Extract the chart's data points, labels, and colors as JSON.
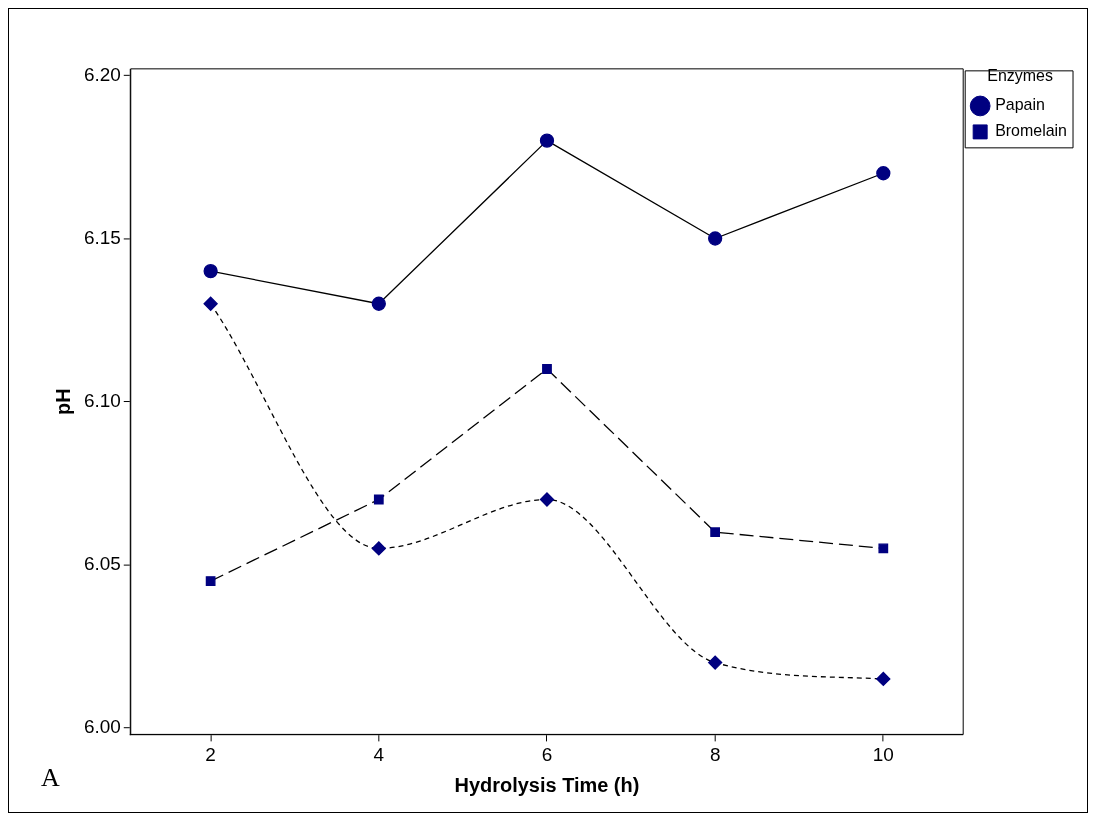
{
  "chart_data": {
    "type": "line",
    "xlabel": "Hydrolysis Time (h)",
    "ylabel": "pH",
    "legend_title": "Enzymes",
    "legend": "right",
    "grid": false,
    "x": [
      2,
      4,
      6,
      8,
      10
    ],
    "xlim": [
      1.05,
      10.95
    ],
    "xticks": [
      2,
      4,
      6,
      8,
      10
    ],
    "ylim": [
      5.998,
      6.202
    ],
    "yticks": [
      {
        "value": 6.0,
        "label": "6.00"
      },
      {
        "value": 6.05,
        "label": "6.05"
      },
      {
        "value": 6.1,
        "label": "6.10"
      },
      {
        "value": 6.15,
        "label": "6.15"
      },
      {
        "value": 6.2,
        "label": "6.20"
      }
    ],
    "series": [
      {
        "name": "Papain",
        "color": "#000080",
        "marker": "circle",
        "line_style": "solid",
        "values": [
          6.14,
          6.13,
          6.18,
          6.15,
          6.17
        ]
      },
      {
        "name": "Bromelain",
        "color": "#000080",
        "marker": "square",
        "line_style": "dashed",
        "values": [
          6.045,
          6.07,
          6.11,
          6.06,
          6.055
        ]
      },
      {
        "color": "#000080",
        "marker": "diamond",
        "line_style": "dotted",
        "values": [
          6.13,
          6.055,
          6.07,
          6.02,
          6.015
        ]
      }
    ],
    "annotations": [
      "A"
    ]
  }
}
